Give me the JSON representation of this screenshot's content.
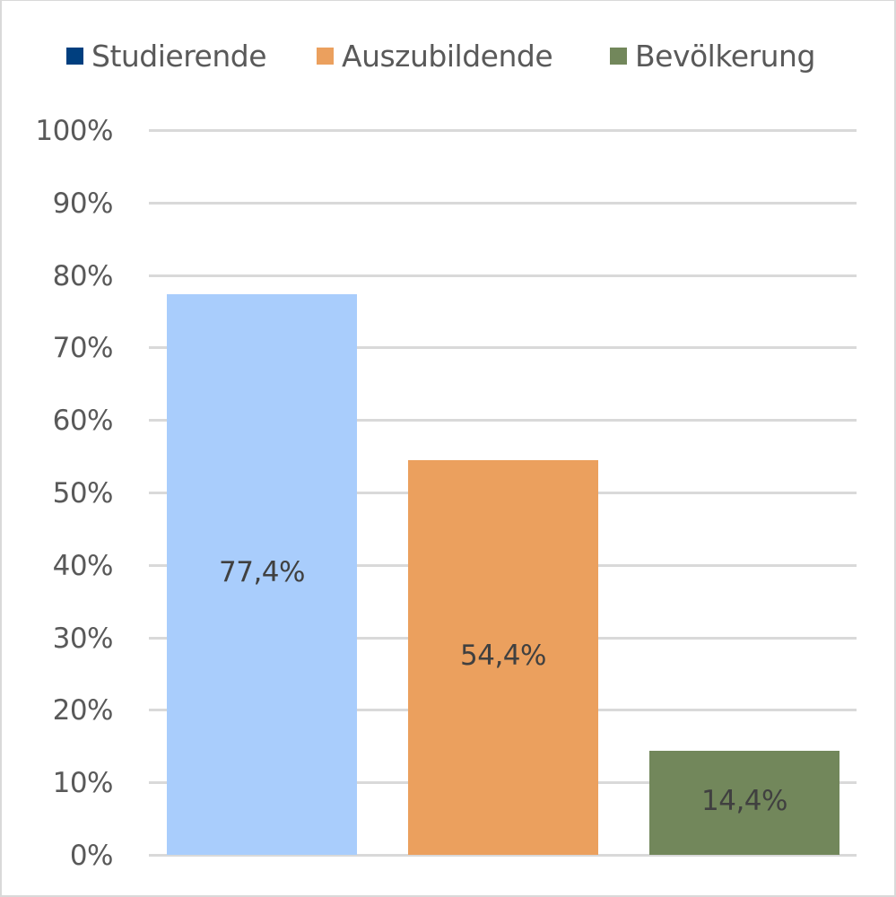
{
  "chart_data": {
    "type": "bar",
    "title": "",
    "xlabel": "",
    "ylabel": "",
    "categories": [
      "Studierende",
      "Auszubildende",
      "Bevölkerung"
    ],
    "values": [
      77.4,
      54.4,
      14.4
    ],
    "value_labels": [
      "77,4%",
      "54,4%",
      "14,4%"
    ],
    "ylim": [
      0,
      100
    ],
    "yticks": [
      0,
      10,
      20,
      30,
      40,
      50,
      60,
      70,
      80,
      90,
      100
    ],
    "ytick_labels": [
      "0%",
      "10%",
      "20%",
      "30%",
      "40%",
      "50%",
      "60%",
      "70%",
      "80%",
      "90%",
      "100%"
    ],
    "grid": true,
    "legend_position": "top",
    "legend": [
      {
        "label": "Studierende",
        "color": "#003f7f"
      },
      {
        "label": "Auszubildende",
        "color": "#eba05e"
      },
      {
        "label": "Bevölkerung",
        "color": "#72875b"
      }
    ],
    "bar_colors": [
      "#a9cdfc",
      "#eba05e",
      "#72875b"
    ]
  }
}
